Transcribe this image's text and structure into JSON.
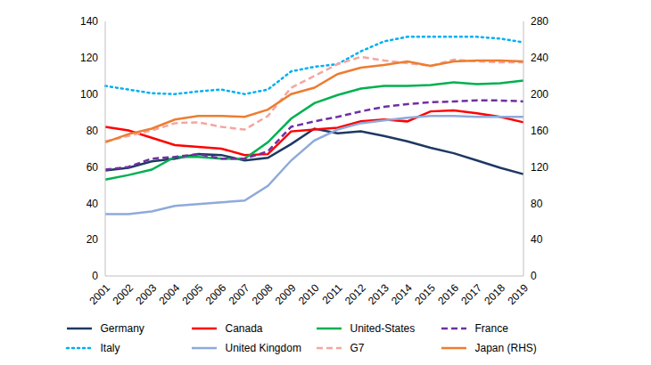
{
  "chart_data": {
    "type": "line",
    "categories": [
      "2001",
      "2002",
      "2003",
      "2004",
      "2005",
      "2006",
      "2007",
      "2008",
      "2009",
      "2010",
      "2011",
      "2012",
      "2013",
      "2014",
      "2015",
      "2016",
      "2017",
      "2018",
      "2019"
    ],
    "series": [
      {
        "name": "Germany",
        "color": "#1f3864",
        "line_style": "solid",
        "values": [
          58,
          59.5,
          63,
          64.5,
          67,
          66.5,
          63.5,
          65,
          72.5,
          81,
          78.5,
          79.5,
          77,
          74,
          70.5,
          67.5,
          63.5,
          59.5,
          56
        ]
      },
      {
        "name": "Canada",
        "color": "#ff0000",
        "line_style": "solid",
        "values": [
          82,
          80,
          76,
          72,
          71,
          70,
          66.5,
          67,
          79.5,
          80.5,
          81.5,
          85,
          86,
          85,
          90.5,
          91,
          89.5,
          87.5,
          84.5
        ]
      },
      {
        "name": "United-States",
        "color": "#00b050",
        "line_style": "solid",
        "values": [
          53,
          55.5,
          58.5,
          65.5,
          65.5,
          64.5,
          64.5,
          73.5,
          86.5,
          95,
          99.5,
          103,
          104.5,
          104.5,
          105,
          106.5,
          105.5,
          106,
          107.5
        ]
      },
      {
        "name": "France",
        "color": "#7030a0",
        "line_style": "dashed",
        "values": [
          58.5,
          60,
          64.5,
          65.5,
          67,
          64.5,
          64.5,
          68.5,
          82,
          85,
          87.5,
          90.5,
          93,
          94.5,
          95.5,
          96,
          96.5,
          96.5,
          96
        ]
      },
      {
        "name": "Italy",
        "color": "#00b0f0",
        "line_style": "dotted",
        "values": [
          104.5,
          102.5,
          100.5,
          100,
          101.5,
          102.5,
          100,
          102.5,
          112.5,
          115,
          116.5,
          123.5,
          129,
          131.5,
          131.5,
          131.5,
          131.5,
          130.5,
          128.5
        ]
      },
      {
        "name": "United Kingdom",
        "color": "#8eaadb",
        "line_style": "solid",
        "values": [
          34,
          34,
          35.5,
          38.5,
          39.5,
          40.5,
          41.5,
          49.5,
          63.5,
          74.5,
          80.5,
          84,
          85.5,
          87,
          88,
          88,
          87.5,
          87.5,
          87.5
        ]
      },
      {
        "name": "G7",
        "color": "#f4a6a0",
        "line_style": "dashed",
        "values": [
          74,
          77,
          80,
          84,
          84.5,
          82,
          80.5,
          88,
          103.5,
          110,
          116.5,
          120.5,
          118.5,
          117,
          115.5,
          119,
          118,
          117.5,
          117.5
        ]
      },
      {
        "name": "Japan (RHS)",
        "color": "#ed7d31",
        "line_style": "solid",
        "axis": "y2",
        "values": [
          147,
          156,
          162,
          172,
          176,
          176,
          175,
          183,
          200,
          207,
          222,
          229,
          232,
          236,
          231,
          236,
          237,
          237,
          236
        ]
      }
    ],
    "ylim": [
      0,
      140
    ],
    "yticks": [
      0,
      20,
      40,
      60,
      80,
      100,
      120,
      140
    ],
    "y2lim": [
      0,
      280
    ],
    "y2ticks": [
      0,
      40,
      80,
      120,
      160,
      200,
      240,
      280
    ],
    "grid": false,
    "legend": "bottom"
  }
}
